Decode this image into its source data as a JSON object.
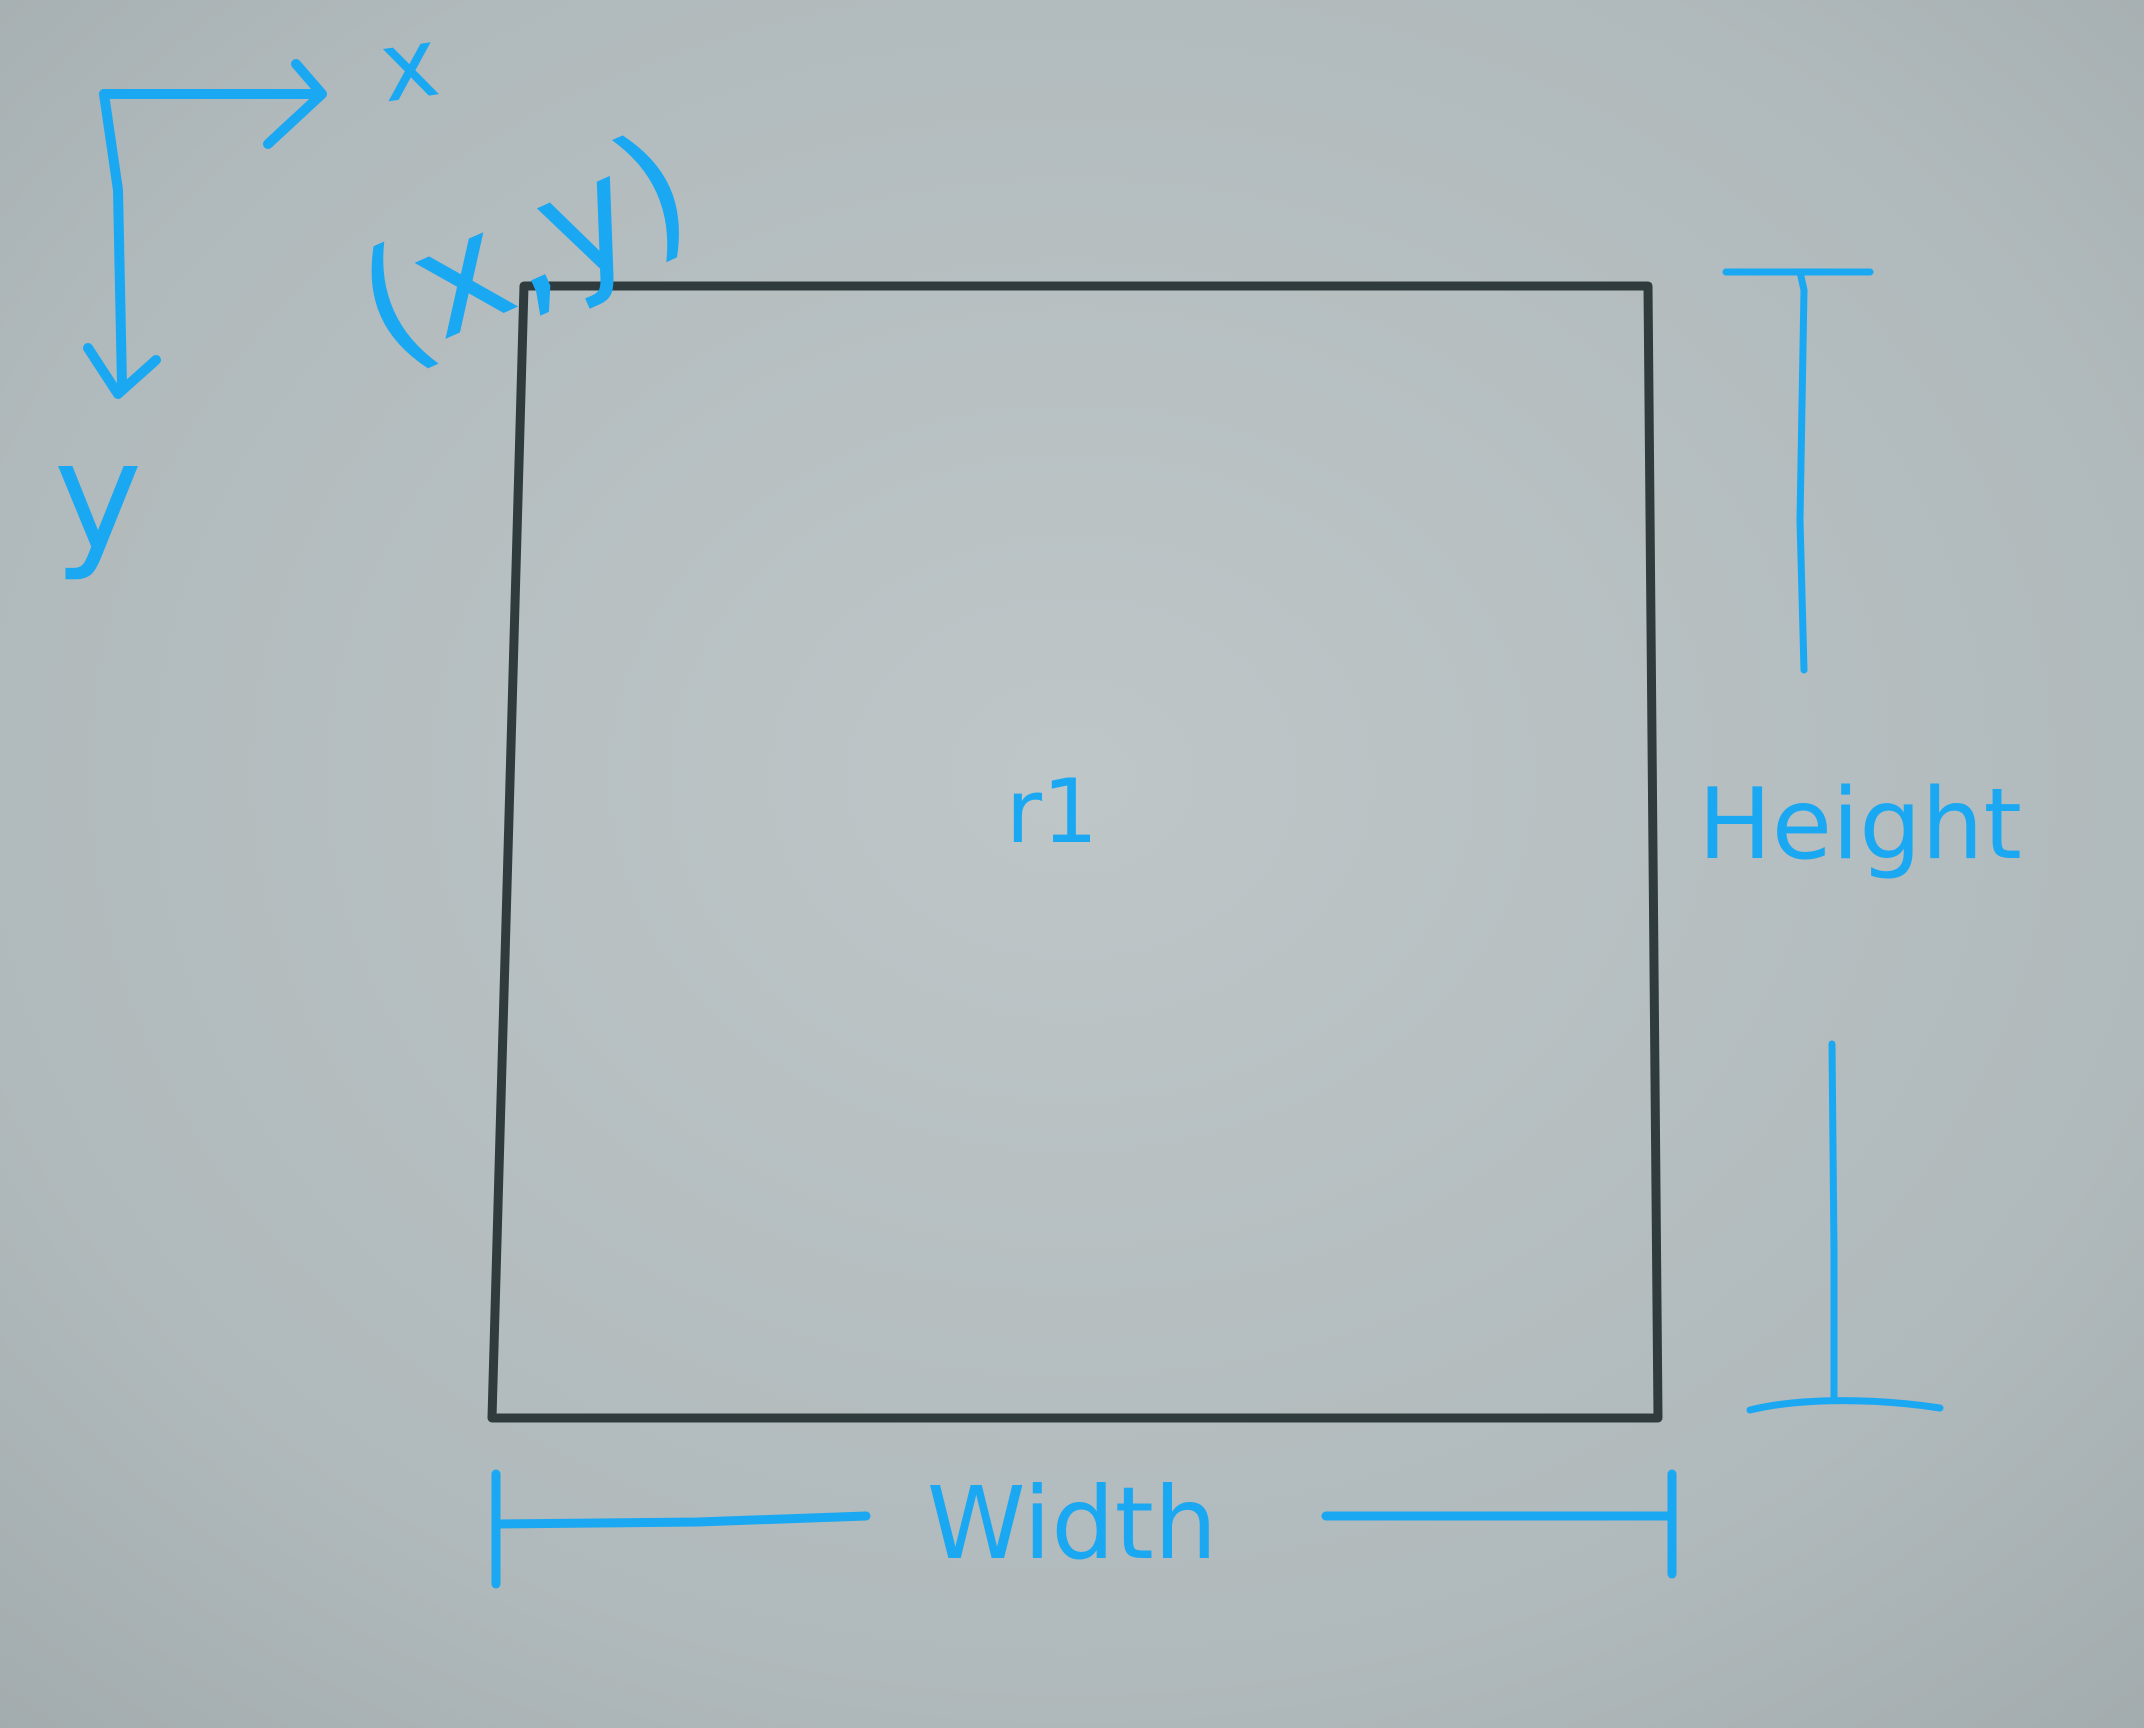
{
  "diagram": {
    "rectangle": {
      "name": "r1"
    },
    "axes": {
      "x_label": "x",
      "y_label": "y",
      "origin_label": "(x,y)"
    },
    "dimensions": {
      "width_label": "Width",
      "height_label": "Height"
    },
    "colors": {
      "annotation": "#1aa8f2",
      "pencil": "#2f3b3d",
      "paper": "#b4bcbe"
    }
  }
}
